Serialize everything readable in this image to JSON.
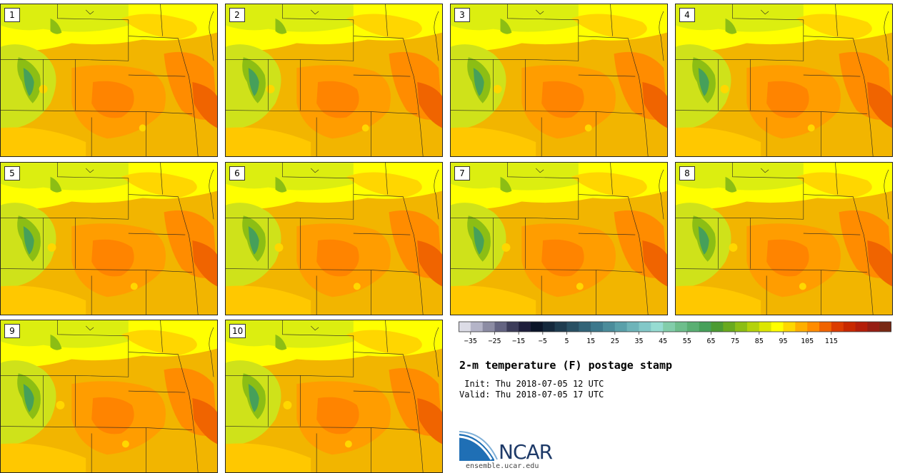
{
  "stamps": [
    {
      "label": "1"
    },
    {
      "label": "2"
    },
    {
      "label": "3"
    },
    {
      "label": "4"
    },
    {
      "label": "5"
    },
    {
      "label": "6"
    },
    {
      "label": "7"
    },
    {
      "label": "8"
    },
    {
      "label": "9"
    },
    {
      "label": "10"
    }
  ],
  "colorbar": {
    "colors": [
      "#dcdce6",
      "#b4b4c8",
      "#8c8ca4",
      "#646482",
      "#3c3c5a",
      "#1e1e3c",
      "#0a1428",
      "#14283c",
      "#1e3c50",
      "#285064",
      "#326478",
      "#3c788c",
      "#4b8c9b",
      "#5aa0aa",
      "#6eb4b9",
      "#82c8c8",
      "#96dcd2",
      "#82cdaa",
      "#6ebe8c",
      "#5aaf73",
      "#46a05a",
      "#4b9b32",
      "#69aa1e",
      "#8cbe14",
      "#b4d20a",
      "#dce600",
      "#ffff00",
      "#ffd700",
      "#ffaf00",
      "#ff8c00",
      "#f06400",
      "#dc3c00",
      "#c82800",
      "#b41e0a",
      "#961e14",
      "#782814"
    ],
    "ticks": [
      "−35",
      "−25",
      "−15",
      "−5",
      "5",
      "15",
      "25",
      "35",
      "45",
      "55",
      "65",
      "75",
      "85",
      "95",
      "105",
      "115"
    ]
  },
  "title": "2-m temperature (F) postage stamp",
  "init": " Init: Thu 2018-07-05 12 UTC",
  "valid": "Valid: Thu 2018-07-05 17 UTC",
  "logo": {
    "name": "NCAR",
    "url": "ensemble.ucar.edu"
  }
}
